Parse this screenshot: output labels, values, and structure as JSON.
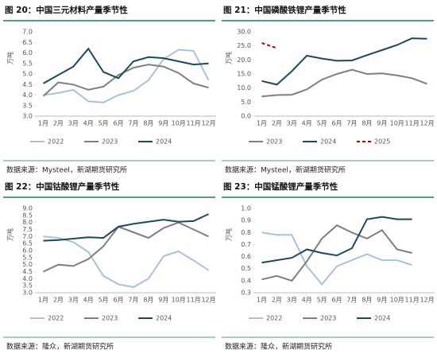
{
  "chart_data": [
    {
      "type": "line",
      "title": "图 20：中国三元材料产量季节性",
      "ylabel": "万吨",
      "source": "数据来源：Mysteel，新湖期货研究所",
      "categories": [
        "1月",
        "2月",
        "3月",
        "4月",
        "5月",
        "6月",
        "7月",
        "8月",
        "9月",
        "10月",
        "11月",
        "12月"
      ],
      "ylim": [
        3,
        7
      ],
      "yticks": [
        {
          "value": 3,
          "label": "3.0"
        },
        3.5,
        {
          "value": 4,
          "label": "4.0"
        },
        4.5,
        {
          "value": 5,
          "label": "5.0"
        },
        5.5,
        {
          "value": 6,
          "label": "6.0"
        },
        6.5,
        {
          "value": 7,
          "label": "7.0"
        }
      ],
      "grid": false,
      "series": [
        {
          "name": "2022",
          "color": "#a9c0df",
          "values": [
            4.0,
            4.1,
            4.25,
            3.7,
            3.65,
            4.0,
            4.2,
            4.7,
            5.7,
            6.15,
            6.1,
            4.7
          ]
        },
        {
          "name": "2023",
          "color": "#7f7f7f",
          "values": [
            3.95,
            4.6,
            4.5,
            4.25,
            4.4,
            4.95,
            5.3,
            5.45,
            5.35,
            5.05,
            4.55,
            4.35
          ]
        },
        {
          "name": "2024",
          "color": "#1c4a5a",
          "values": [
            4.55,
            4.95,
            5.35,
            6.2,
            5.1,
            4.8,
            5.6,
            5.8,
            5.75,
            5.6,
            5.45,
            5.5
          ]
        }
      ]
    },
    {
      "type": "line",
      "title": "图 21：中国磷酸铁锂产量季节性",
      "ylabel": "万吨",
      "source": "数据来源：Mysteel，新湖期货研究所",
      "categories": [
        "1月",
        "2月",
        "3月",
        "4月",
        "5月",
        "6月",
        "7月",
        "8月",
        "9月",
        "10月",
        "11月",
        "12月"
      ],
      "ylim": [
        0,
        30
      ],
      "yticks": [
        {
          "value": 0,
          "label": "0.0"
        },
        {
          "value": 5,
          "label": "5.0"
        },
        {
          "value": 10,
          "label": "10.0"
        },
        {
          "value": 15,
          "label": "15.0"
        },
        {
          "value": 20,
          "label": "20.0"
        },
        {
          "value": 25,
          "label": "25.0"
        },
        {
          "value": 30,
          "label": "30.0"
        }
      ],
      "grid": false,
      "series": [
        {
          "name": "2023",
          "color": "#7f7f7f",
          "values": [
            7.0,
            7.5,
            7.6,
            9.5,
            13,
            15,
            16.5,
            15,
            15.2,
            14.5,
            13.5,
            11.5
          ]
        },
        {
          "name": "2024",
          "color": "#1c4a5a",
          "values": [
            12.5,
            11.2,
            16,
            21.5,
            20.5,
            19.7,
            19.8,
            21.7,
            23.5,
            25.3,
            27.7,
            27.5
          ]
        },
        {
          "name": "2025",
          "color": "#c00000",
          "dashed": true,
          "values": [
            26,
            24.2,
            null,
            null,
            null,
            null,
            null,
            null,
            null,
            null,
            null,
            null
          ]
        }
      ]
    },
    {
      "type": "line",
      "title": "图 22：中国钴酸锂产量季节性",
      "ylabel": "万吨",
      "source": "数据来源：隆众，新湖期货研究所",
      "categories": [
        "1月",
        "2月",
        "3月",
        "4月",
        "5月",
        "6月",
        "7月",
        "8月",
        "9月",
        "10月",
        "11月",
        "12月"
      ],
      "ylim": [
        3,
        9
      ],
      "yticks": [
        {
          "value": 3,
          "label": "3.0"
        },
        3.5,
        {
          "value": 4,
          "label": "4.0"
        },
        4.5,
        {
          "value": 5,
          "label": "5.0"
        },
        5.5,
        {
          "value": 6,
          "label": "6.0"
        },
        6.5,
        {
          "value": 7,
          "label": "7.0"
        },
        7.5,
        {
          "value": 8,
          "label": "8.0"
        },
        8.5,
        {
          "value": 9,
          "label": "9.0"
        }
      ],
      "grid": false,
      "series": [
        {
          "name": "2022",
          "color": "#a9c0df",
          "values": [
            7.0,
            6.9,
            6.6,
            5.9,
            4.2,
            3.6,
            3.4,
            4.0,
            5.6,
            5.95,
            5.3,
            4.6
          ]
        },
        {
          "name": "2023",
          "color": "#7f7f7f",
          "values": [
            4.5,
            5.0,
            4.9,
            5.4,
            6.3,
            7.7,
            7.3,
            6.9,
            7.6,
            8.0,
            7.5,
            7.0
          ]
        },
        {
          "name": "2024",
          "color": "#1c4a5a",
          "values": [
            6.7,
            6.75,
            6.85,
            6.95,
            6.9,
            7.7,
            7.9,
            8.05,
            8.2,
            8.05,
            8.1,
            8.6
          ]
        }
      ]
    },
    {
      "type": "line",
      "title": "图 23：中国锰酸锂产量季节性",
      "ylabel": "万吨",
      "source": "数据来源：隆众，新湖期货研究所",
      "categories": [
        "1月",
        "2月",
        "3月",
        "4月",
        "5月",
        "6月",
        "7月",
        "8月",
        "9月",
        "10月",
        "11月",
        "12月"
      ],
      "ylim": [
        0.3,
        1
      ],
      "yticks": [
        0.3,
        0.4,
        0.5,
        0.6,
        0.7,
        0.8,
        0.9,
        {
          "value": 1,
          "label": "1.0"
        }
      ],
      "grid": false,
      "series": [
        {
          "name": "2022",
          "color": "#a9c0df",
          "values": [
            0.8,
            0.78,
            0.78,
            0.52,
            0.37,
            0.52,
            0.57,
            0.62,
            0.57,
            0.57,
            0.53,
            null
          ]
        },
        {
          "name": "2023",
          "color": "#7f7f7f",
          "values": [
            0.41,
            0.44,
            0.4,
            0.56,
            0.75,
            0.86,
            0.8,
            0.75,
            0.82,
            0.66,
            0.63,
            null
          ]
        },
        {
          "name": "2024",
          "color": "#1c4a5a",
          "values": [
            0.55,
            0.57,
            0.59,
            0.66,
            0.63,
            0.61,
            0.67,
            0.91,
            0.93,
            0.91,
            0.91,
            null
          ]
        }
      ]
    }
  ]
}
